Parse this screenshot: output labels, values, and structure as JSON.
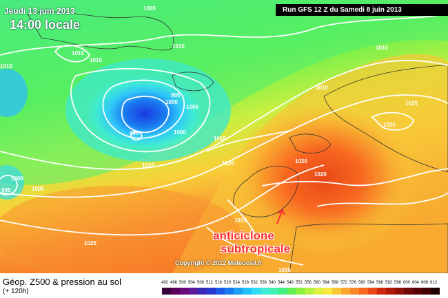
{
  "header": {
    "date": "Jeudi 13 juin 2013",
    "time": "14:00 locale",
    "run": "Run GFS 12 Z du Samedi 8 juin 2013"
  },
  "annotation": {
    "line1": "anticiclone",
    "line2": "subtropicale",
    "color": "#ff3030"
  },
  "copyright": "Copyright © 2012 Meteociel.fr",
  "footer": {
    "title": "Géop. Z500 & pression au sol",
    "forecast": "(+ 120h)"
  },
  "isobar_labels": [
    "1005",
    "1015",
    "1010",
    "1010",
    "1010",
    "1010",
    "995",
    "1000",
    "1005",
    "995",
    "1000",
    "1015",
    "1010",
    "1020",
    "1025",
    "1025",
    "1020",
    "1020",
    "995",
    "1000",
    "1005",
    "1015",
    "1025",
    "1010",
    "1005"
  ],
  "scale": {
    "ticks": [
      "492",
      "496",
      "500",
      "504",
      "508",
      "512",
      "516",
      "520",
      "524",
      "528",
      "532",
      "536",
      "540",
      "544",
      "548",
      "552",
      "556",
      "560",
      "564",
      "568",
      "572",
      "576",
      "580",
      "584",
      "588",
      "592",
      "596",
      "600",
      "604",
      "608",
      "612"
    ],
    "colors": [
      "#3a003a",
      "#5a005a",
      "#6a0a7a",
      "#5a1a9a",
      "#3a2ab8",
      "#2a3ad0",
      "#1a5ae6",
      "#1a7af0",
      "#1aa0f6",
      "#20c0f8",
      "#30dcf4",
      "#40ecd8",
      "#40f0b0",
      "#40f080",
      "#60f050",
      "#90f040",
      "#b8f040",
      "#e0f040",
      "#f8e840",
      "#f8c838",
      "#f8a830",
      "#f88828",
      "#f86820",
      "#e84818",
      "#d02810",
      "#b01808",
      "#901008",
      "#700808",
      "#580404",
      "#400202",
      "#200000"
    ]
  },
  "colors": {
    "low_core": "#1a3ae0",
    "high_core": "#f06010"
  }
}
